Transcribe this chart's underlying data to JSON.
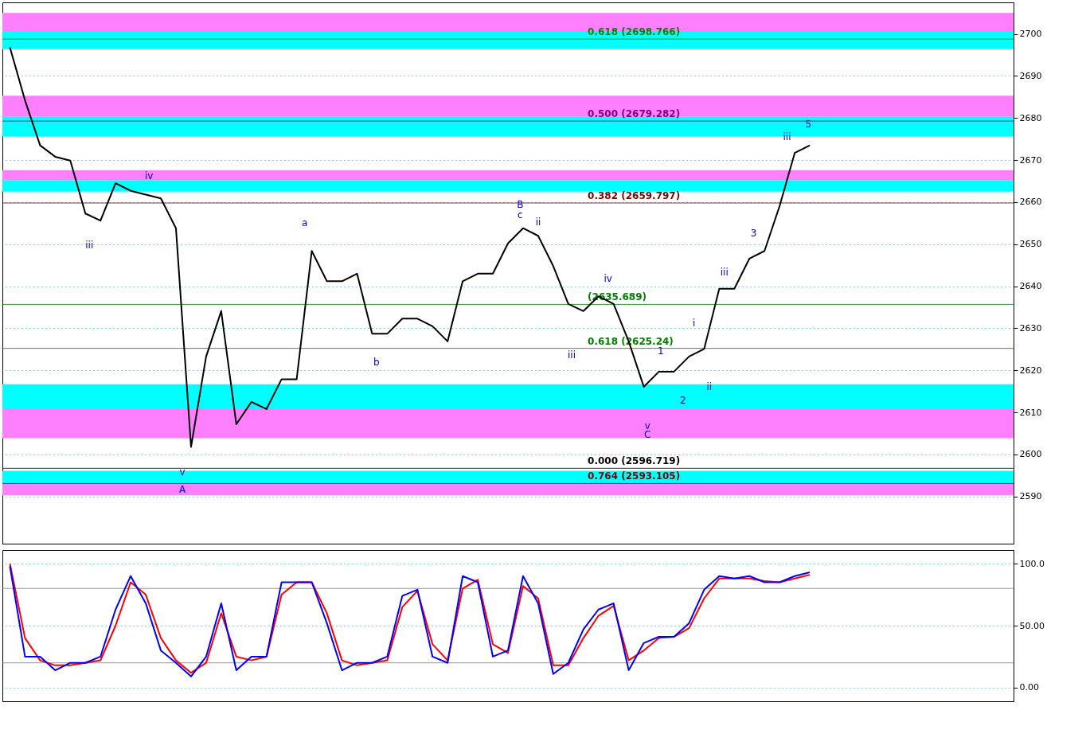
{
  "chart_data": [
    {
      "type": "line",
      "tick_labels": "y",
      "grid": "y",
      "line_style": "solid",
      "categories": [
        null,
        null,
        null,
        null,
        null,
        null,
        null,
        null,
        null,
        null,
        null,
        null,
        null,
        null,
        null,
        null,
        null,
        null,
        null,
        null,
        null,
        null,
        null,
        null,
        null,
        null,
        null,
        null,
        null,
        null,
        null,
        null,
        null,
        null,
        null,
        null,
        null,
        null,
        null,
        null,
        null,
        null,
        null,
        null,
        null,
        null,
        null,
        null,
        null,
        null,
        null,
        null,
        null,
        null,
        null,
        null,
        null,
        null,
        null,
        null,
        null,
        null,
        null,
        null,
        null,
        null,
        null
      ],
      "ylim": [
        2578.8,
        2707.5
      ],
      "yticks": [
        2590,
        2600,
        2610,
        2620,
        2630,
        2640,
        2650,
        2660,
        2670,
        2680,
        2690,
        2700
      ],
      "series": [
        {
          "color": "#000000",
          "values": [
            2696.8,
            2684.2,
            2673.5,
            2670.8,
            2669.9,
            2657.3,
            2655.6,
            2664.5,
            2662.7,
            2661.8,
            2660.9,
            2653.8,
            2601.8,
            2623.3,
            2634.1,
            2607.2,
            2612.5,
            2610.8,
            2617.9,
            2617.9,
            2648.4,
            2641.2,
            2641.2,
            2643.0,
            2628.7,
            2628.7,
            2632.3,
            2632.3,
            2630.5,
            2626.9,
            2641.2,
            2643.0,
            2643.0,
            2650.2,
            2653.8,
            2652.0,
            2644.8,
            2635.8,
            2634.1,
            2637.6,
            2635.8,
            2626.9,
            2616.1,
            2619.7,
            2619.7,
            2623.3,
            2625.1,
            2639.4,
            2639.4,
            2646.6,
            2648.4,
            2659.1,
            2671.7,
            2673.5,
            null,
            null,
            null,
            null,
            null,
            null,
            null,
            null,
            null,
            null,
            null,
            null,
            null
          ]
        }
      ],
      "bands": [
        {
          "axis": "y",
          "from": 2700.7,
          "to": 2705.0,
          "color": "#ff80ff"
        },
        {
          "axis": "y",
          "from": 2696.4,
          "to": 2700.7,
          "color": "#00ffff"
        },
        {
          "axis": "y",
          "from": 2680.3,
          "to": 2685.3,
          "color": "#ff80ff"
        },
        {
          "axis": "y",
          "from": 2675.6,
          "to": 2680.3,
          "color": "#00ffff"
        },
        {
          "axis": "y",
          "from": 2665.2,
          "to": 2667.6,
          "color": "#ff80ff"
        },
        {
          "axis": "y",
          "from": 2662.5,
          "to": 2665.2,
          "color": "#00ffff"
        },
        {
          "axis": "y",
          "from": 2610.8,
          "to": 2616.7,
          "color": "#00ffff"
        },
        {
          "axis": "y",
          "from": 2603.9,
          "to": 2610.8,
          "color": "#ff80ff"
        },
        {
          "axis": "y",
          "from": 2593.2,
          "to": 2596.1,
          "color": "#00ffff"
        },
        {
          "axis": "y",
          "from": 2590.3,
          "to": 2593.2,
          "color": "#ff80ff"
        }
      ],
      "ref_lines": [
        {
          "axis": "y",
          "value": 2698.766,
          "label": "0.618 (2698.766)",
          "color": "#008000"
        },
        {
          "axis": "y",
          "value": 2679.282,
          "label": "0.500 (2679.282)",
          "color": "#800080"
        },
        {
          "axis": "y",
          "value": 2659.797,
          "label": "0.382 (2659.797)",
          "color": "#800000"
        },
        {
          "axis": "y",
          "value": 2635.689,
          "label": "(2635.689)",
          "color": "#008000"
        },
        {
          "axis": "y",
          "value": 2625.24,
          "label": "0.618 (2625.24)",
          "color": "#008000"
        },
        {
          "axis": "y",
          "value": 2596.719,
          "label": "0.000 (2596.719)",
          "color": "#000000"
        },
        {
          "axis": "y",
          "value": 2593.105,
          "label": "0.764 (2593.105)",
          "color": "#800000"
        }
      ],
      "annotations": [
        "iii",
        "iv",
        "v",
        "A",
        "a",
        "b",
        "B",
        "c",
        "ii",
        "iii",
        "iv",
        "v",
        "C",
        "1",
        "2",
        "i",
        "ii",
        "iii",
        "3",
        "iii",
        "5"
      ]
    },
    {
      "type": "line",
      "tick_labels": "y",
      "grid": "y",
      "line_style": "solid",
      "categories": [
        null,
        null,
        null,
        null,
        null,
        null,
        null,
        null,
        null,
        null,
        null,
        null,
        null,
        null,
        null,
        null,
        null,
        null,
        null,
        null,
        null,
        null,
        null,
        null,
        null,
        null,
        null,
        null,
        null,
        null,
        null,
        null,
        null,
        null,
        null,
        null,
        null,
        null,
        null,
        null,
        null,
        null,
        null,
        null,
        null,
        null,
        null,
        null,
        null,
        null,
        null,
        null,
        null,
        null,
        null,
        null,
        null,
        null,
        null,
        null,
        null,
        null,
        null,
        null,
        null,
        null,
        null
      ],
      "ylim": [
        -11,
        111
      ],
      "yticks": [
        {
          "value": 0,
          "label": "0.00"
        },
        {
          "value": 50,
          "label": "50.00"
        },
        {
          "value": 100,
          "label": "100.0"
        }
      ],
      "series": [
        {
          "color": "#ff0000",
          "values": [
            100,
            40,
            22,
            18,
            18,
            20,
            22,
            50,
            85,
            75,
            40,
            22,
            12,
            20,
            60,
            25,
            22,
            25,
            75,
            85,
            85,
            60,
            22,
            18,
            20,
            22,
            65,
            78,
            35,
            22,
            80,
            87,
            35,
            28,
            82,
            72,
            18,
            18,
            40,
            58,
            66,
            22,
            30,
            40,
            41,
            48,
            72,
            88,
            88,
            88,
            86,
            85,
            88,
            91,
            null,
            null,
            null,
            null,
            null,
            null,
            null,
            null,
            null,
            null,
            null,
            null,
            null
          ]
        },
        {
          "color": "#0000ff",
          "values": [
            98,
            25,
            25,
            14,
            20,
            20,
            25,
            63,
            90,
            68,
            30,
            20,
            9,
            25,
            68,
            14,
            25,
            25,
            85,
            85,
            85,
            52,
            14,
            20,
            20,
            25,
            74,
            79,
            25,
            20,
            90,
            85,
            25,
            30,
            90,
            68,
            11,
            20,
            47,
            63,
            68,
            14,
            36,
            41,
            41,
            52,
            79,
            90,
            88,
            90,
            85,
            85,
            90,
            93,
            null,
            null,
            null,
            null,
            null,
            null,
            null,
            null,
            null,
            null,
            null,
            null,
            null
          ]
        }
      ],
      "ref_lines": [
        {
          "axis": "y",
          "value": 80,
          "color": "#808080"
        },
        {
          "axis": "y",
          "value": 20,
          "color": "#808080"
        }
      ]
    }
  ]
}
